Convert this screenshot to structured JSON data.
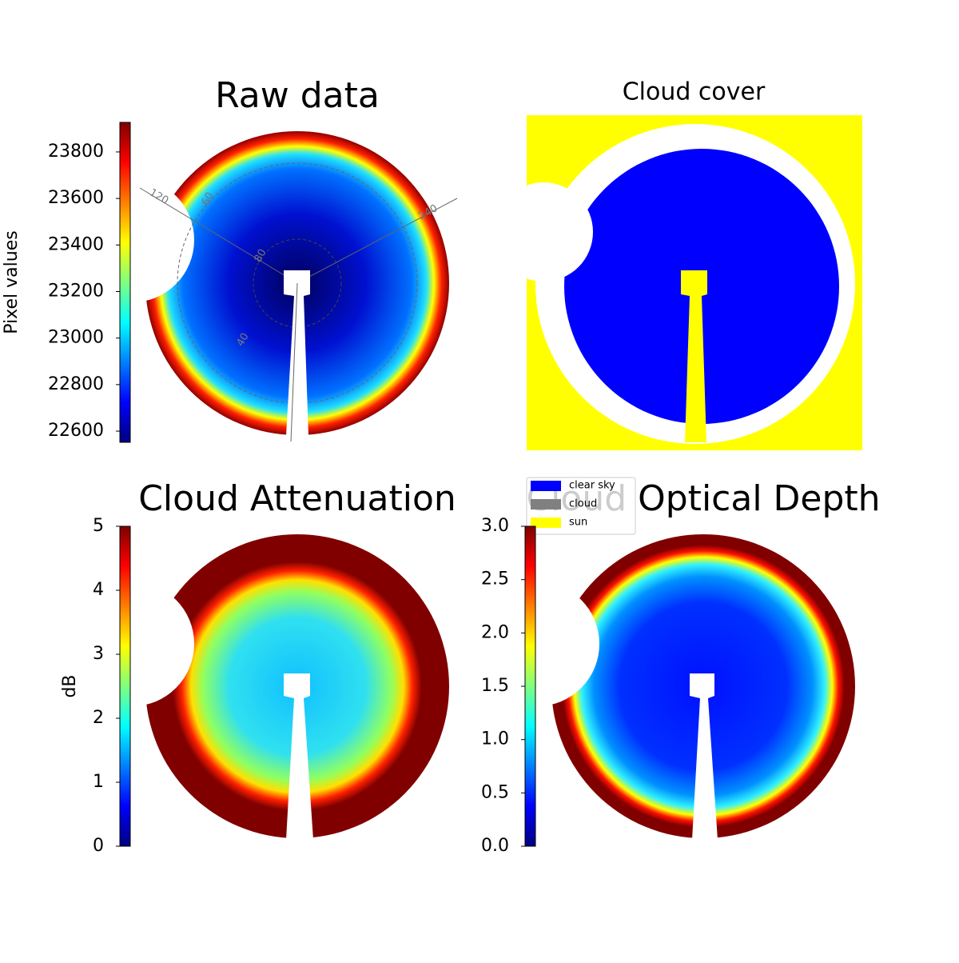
{
  "chart_data": [
    {
      "type": "image",
      "title": "Raw data",
      "colorbar_label": "Pixel values",
      "colormap": "jet",
      "clim": [
        22552,
        23927
      ],
      "cticks": [
        22600,
        22800,
        23000,
        23200,
        23400,
        23600,
        23800
      ],
      "annotations": [
        "120",
        "60",
        "240",
        "80",
        "40"
      ]
    },
    {
      "type": "image",
      "title": "Cloud cover",
      "legend": [
        {
          "name": "clear sky",
          "color": "#0000ff"
        },
        {
          "name": "cloud",
          "color": "#808080"
        },
        {
          "name": "sun",
          "color": "#ffff00"
        }
      ]
    },
    {
      "type": "image",
      "title": "Cloud Attenuation",
      "colorbar_label": "dB",
      "colormap": "jet",
      "clim": [
        0,
        5
      ],
      "cticks": [
        0,
        1,
        2,
        3,
        4,
        5
      ]
    },
    {
      "type": "image",
      "title": "Cloud Optical Depth",
      "colormap": "jet",
      "clim": [
        0,
        3
      ],
      "cticks": [
        {
          "value": 0,
          "label": "0.0"
        },
        0.5,
        {
          "value": 1,
          "label": "1.0"
        },
        1.5,
        {
          "value": 2,
          "label": "2.0"
        },
        2.5,
        {
          "value": 3,
          "label": "3.0"
        }
      ]
    }
  ]
}
